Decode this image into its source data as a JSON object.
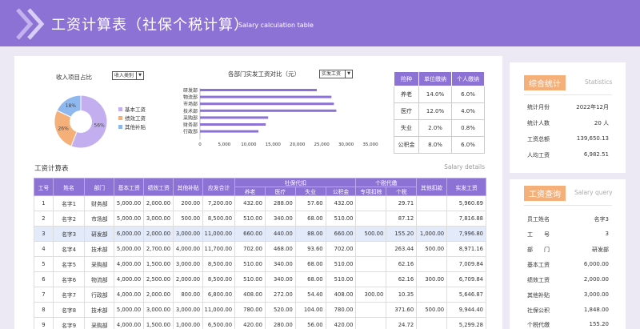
{
  "header": {
    "title": "工资计算表（社保个税计算）",
    "subtitle": "Salary calculation table"
  },
  "pie": {
    "title": "收入项目占比",
    "select": "收入类别",
    "colors": [
      "#c3aff0",
      "#f5b07a",
      "#8fb8ef"
    ],
    "legend": [
      "基本工资",
      "绩效工资",
      "其他补贴"
    ],
    "labels": [
      "56%",
      "26%",
      "18%"
    ]
  },
  "bar": {
    "title": "各部门实发工资对比（元）",
    "select": "实发工资",
    "color": "#8d72d6"
  },
  "rates": {
    "headers": [
      "险种",
      "单位缴纳",
      "个人缴纳"
    ],
    "rows": [
      [
        "养老",
        "14.0%",
        "6.0%"
      ],
      [
        "医疗",
        "12.0%",
        "4.0%"
      ],
      [
        "失业",
        "2.0%",
        "0.8%"
      ],
      [
        "公积金",
        "8.0%",
        "6.0%"
      ]
    ]
  },
  "salary": {
    "title": "工资计算表",
    "subtitle": "Salary details",
    "head1": [
      "工号",
      "姓名",
      "部门",
      "基本工资",
      "绩效工资",
      "其他补贴",
      "应发合计",
      "社保代扣",
      "个税代缴",
      "其他扣款",
      "实发工资"
    ],
    "head2": [
      "养老",
      "医疗",
      "失业",
      "公积金",
      "专项扣除",
      "个税"
    ],
    "rows": [
      [
        "1",
        "名字1",
        "财务部",
        "5,000.00",
        "2,000.00",
        "200.00",
        "7,200.00",
        "432.00",
        "288.00",
        "57.60",
        "432.00",
        "",
        "29.71",
        "",
        "5,960.69"
      ],
      [
        "2",
        "名字2",
        "市场部",
        "5,000.00",
        "3,000.00",
        "500.00",
        "8,500.00",
        "510.00",
        "340.00",
        "68.00",
        "510.00",
        "",
        "87.12",
        "",
        "7,816.88"
      ],
      [
        "3",
        "名字3",
        "研发部",
        "6,000.00",
        "2,000.00",
        "3,000.00",
        "11,000.00",
        "660.00",
        "440.00",
        "88.00",
        "660.00",
        "500.00",
        "155.20",
        "1,000.00",
        "7,996.80"
      ],
      [
        "4",
        "名字4",
        "技术部",
        "5,000.00",
        "2,700.00",
        "4,000.00",
        "11,700.00",
        "702.00",
        "468.00",
        "93.60",
        "702.00",
        "",
        "263.44",
        "500.00",
        "8,971.16"
      ],
      [
        "5",
        "名字5",
        "采购部",
        "4,000.00",
        "1,500.00",
        "3,000.00",
        "8,500.00",
        "510.00",
        "340.00",
        "68.00",
        "510.00",
        "",
        "62.16",
        "",
        "7,009.84"
      ],
      [
        "6",
        "名字6",
        "物流部",
        "4,000.00",
        "2,500.00",
        "2,000.00",
        "8,500.00",
        "510.00",
        "340.00",
        "68.00",
        "510.00",
        "",
        "62.16",
        "300.00",
        "6,709.84"
      ],
      [
        "7",
        "名字7",
        "行政部",
        "4,000.00",
        "2,000.00",
        "800.00",
        "6,800.00",
        "408.00",
        "272.00",
        "54.40",
        "408.00",
        "300.00",
        "10.35",
        "",
        "5,646.87"
      ],
      [
        "8",
        "名字8",
        "技术部",
        "5,000.00",
        "3,000.00",
        "3,000.00",
        "11,000.00",
        "780.00",
        "520.00",
        "104.00",
        "780.00",
        "",
        "371.60",
        "500.00",
        "9,944.40"
      ],
      [
        "9",
        "名字9",
        "采购部",
        "4,000.00",
        "1,500.00",
        "1,000.00",
        "6,500.00",
        "420.00",
        "280.00",
        "56.00",
        "420.00",
        "",
        "24.72",
        "",
        "5,299.28"
      ]
    ]
  },
  "stats": {
    "badge": "综合统计",
    "hint": "Statistics",
    "rows": [
      [
        "统计月份",
        "2022年12月"
      ],
      [
        "统计人数",
        "20 人"
      ],
      [
        "工资总额",
        "139,650.13"
      ],
      [
        "人均工资",
        "6,982.51"
      ]
    ]
  },
  "query": {
    "badge": "工资查询",
    "hint": "Salary query",
    "rows": [
      [
        "员工姓名",
        "名字3"
      ],
      [
        "工　　号",
        "3"
      ],
      [
        "部　　门",
        "研发部"
      ],
      [
        "基本工资",
        "6,000.00"
      ],
      [
        "绩效工资",
        "2,000.00"
      ],
      [
        "其他补贴",
        "3,000.00"
      ],
      [
        "社保公积",
        "1,848.00"
      ],
      [
        "个税代缴",
        "155.20"
      ]
    ]
  },
  "chart_data": {
    "type": "bar",
    "title": "各部门实发工资对比（元）",
    "categories": [
      "研发部",
      "物流部",
      "市场部",
      "技术部",
      "采购部",
      "财务部",
      "行政部"
    ],
    "values": [
      24000,
      27000,
      27500,
      28000,
      14000,
      13500,
      12000
    ],
    "xticks": [
      "0",
      "5,000",
      "10,000",
      "15,000",
      "20,000",
      "25,000",
      "30,000",
      "35,000"
    ],
    "xlim": [
      0,
      35000
    ],
    "orientation": "horizontal"
  }
}
